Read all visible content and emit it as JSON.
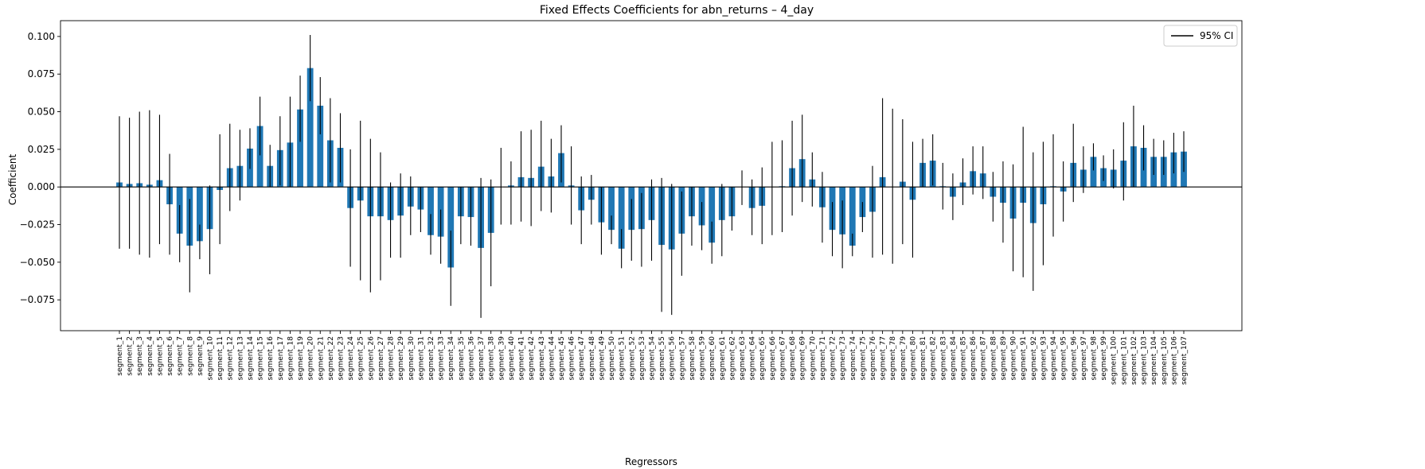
{
  "chart_data": {
    "type": "bar",
    "title": "Fixed Effects Coefficients for abn_returns – 4_day",
    "xlabel": "Regressors",
    "ylabel": "Coefficient",
    "ylim": [
      -0.0955,
      0.1105
    ],
    "yticks": [
      "−0.075",
      "−0.050",
      "−0.025",
      "0.000",
      "0.025",
      "0.050",
      "0.075",
      "0.100"
    ],
    "ytick_values": [
      -0.075,
      -0.05,
      -0.025,
      0,
      0.025,
      0.05,
      0.075,
      0.1
    ],
    "legend": {
      "entries": [
        "95% CI"
      ],
      "placement": "top-right"
    },
    "grid": false,
    "bar_color": "#1f77b4",
    "errorbar_color": "#000000",
    "categories": [
      "segment_1",
      "segment_2",
      "segment_3",
      "segment_4",
      "segment_5",
      "segment_6",
      "segment_7",
      "segment_8",
      "segment_9",
      "segment_10",
      "segment_11",
      "segment_12",
      "segment_13",
      "segment_14",
      "segment_15",
      "segment_16",
      "segment_17",
      "segment_18",
      "segment_19",
      "segment_20",
      "segment_21",
      "segment_22",
      "segment_23",
      "segment_24",
      "segment_25",
      "segment_26",
      "segment_27",
      "segment_28",
      "segment_29",
      "segment_30",
      "segment_31",
      "segment_32",
      "segment_33",
      "segment_34",
      "segment_35",
      "segment_36",
      "segment_37",
      "segment_38",
      "segment_39",
      "segment_40",
      "segment_41",
      "segment_42",
      "segment_43",
      "segment_44",
      "segment_45",
      "segment_46",
      "segment_47",
      "segment_48",
      "segment_49",
      "segment_50",
      "segment_51",
      "segment_52",
      "segment_53",
      "segment_54",
      "segment_55",
      "segment_56",
      "segment_57",
      "segment_58",
      "segment_59",
      "segment_60",
      "segment_61",
      "segment_62",
      "segment_63",
      "segment_64",
      "segment_65",
      "segment_66",
      "segment_67",
      "segment_68",
      "segment_69",
      "segment_70",
      "segment_71",
      "segment_72",
      "segment_73",
      "segment_74",
      "segment_75",
      "segment_76",
      "segment_77",
      "segment_78",
      "segment_79",
      "segment_80",
      "segment_81",
      "segment_82",
      "segment_83",
      "segment_84",
      "segment_85",
      "segment_86",
      "segment_87",
      "segment_88",
      "segment_89",
      "segment_90",
      "segment_91",
      "segment_92",
      "segment_93",
      "segment_94",
      "segment_95",
      "segment_96",
      "segment_97",
      "segment_98",
      "segment_99",
      "segment_100",
      "segment_101",
      "segment_102",
      "segment_103",
      "segment_104",
      "segment_105",
      "segment_106",
      "segment_107"
    ],
    "values": [
      0.003,
      0.002,
      0.0025,
      0.0015,
      0.0045,
      -0.0115,
      -0.031,
      -0.039,
      -0.036,
      -0.028,
      -0.002,
      0.0125,
      0.014,
      0.0255,
      0.0405,
      0.014,
      0.0245,
      0.0295,
      0.0515,
      0.079,
      0.054,
      0.031,
      0.026,
      -0.014,
      -0.009,
      -0.0195,
      -0.0195,
      -0.022,
      -0.019,
      -0.013,
      -0.015,
      -0.032,
      -0.033,
      -0.0535,
      -0.0195,
      -0.02,
      -0.0405,
      -0.0305,
      0.0,
      0.001,
      0.0065,
      0.006,
      0.0135,
      0.007,
      0.0225,
      0.001,
      -0.0155,
      -0.0085,
      -0.0235,
      -0.0285,
      -0.041,
      -0.0285,
      -0.028,
      -0.022,
      -0.0385,
      -0.0415,
      -0.031,
      -0.0195,
      -0.0255,
      -0.037,
      -0.022,
      -0.0195,
      0.0,
      -0.014,
      -0.0125,
      0.0,
      0.0005,
      0.0125,
      0.0185,
      0.005,
      -0.0135,
      -0.0285,
      -0.0315,
      -0.039,
      -0.02,
      -0.0165,
      0.0065,
      0.0,
      0.0035,
      -0.0085,
      0.016,
      0.0175,
      0.0005,
      -0.0065,
      0.003,
      0.0105,
      0.009,
      -0.0065,
      -0.0105,
      -0.021,
      -0.0105,
      -0.024,
      -0.0115,
      0.0005,
      -0.003,
      0.016,
      0.0115,
      0.02,
      0.0125,
      0.0115,
      0.0175,
      0.027,
      0.026,
      0.02,
      0.02,
      0.023,
      0.0235
    ],
    "ci_lower": [
      -0.041,
      -0.041,
      -0.045,
      -0.047,
      -0.038,
      -0.045,
      -0.05,
      -0.07,
      -0.048,
      -0.058,
      -0.038,
      -0.016,
      -0.009,
      0.012,
      0.021,
      0.0,
      0.001,
      0.0,
      0.03,
      0.057,
      0.035,
      0.003,
      0.003,
      -0.053,
      -0.062,
      -0.07,
      -0.062,
      -0.047,
      -0.047,
      -0.032,
      -0.03,
      -0.045,
      -0.051,
      -0.079,
      -0.038,
      -0.039,
      -0.087,
      -0.066,
      -0.025,
      -0.025,
      -0.023,
      -0.026,
      -0.016,
      -0.017,
      0.003,
      -0.025,
      -0.038,
      -0.025,
      -0.045,
      -0.038,
      -0.054,
      -0.049,
      -0.053,
      -0.049,
      -0.083,
      -0.085,
      -0.059,
      -0.039,
      -0.042,
      -0.051,
      -0.046,
      -0.029,
      -0.012,
      -0.032,
      -0.038,
      -0.032,
      -0.03,
      -0.019,
      -0.01,
      -0.013,
      -0.037,
      -0.046,
      -0.054,
      -0.046,
      -0.03,
      -0.047,
      -0.045,
      -0.051,
      -0.038,
      -0.047,
      0.0,
      0.001,
      -0.015,
      -0.022,
      -0.012,
      -0.005,
      -0.008,
      -0.023,
      -0.037,
      -0.056,
      -0.06,
      -0.069,
      -0.052,
      -0.033,
      -0.023,
      -0.01,
      -0.004,
      0.011,
      0.004,
      -0.001,
      -0.009,
      0.0,
      0.011,
      0.008,
      0.008,
      0.009,
      0.01
    ],
    "ci_upper": [
      0.047,
      0.046,
      0.05,
      0.051,
      0.048,
      0.022,
      -0.012,
      -0.008,
      -0.025,
      0.001,
      0.035,
      0.042,
      0.038,
      0.039,
      0.06,
      0.028,
      0.047,
      0.06,
      0.074,
      0.101,
      0.073,
      0.059,
      0.049,
      0.025,
      0.044,
      0.032,
      0.023,
      0.003,
      0.009,
      0.007,
      0.0,
      -0.018,
      -0.015,
      -0.029,
      0.0,
      0.0,
      0.006,
      0.005,
      0.026,
      0.017,
      0.037,
      0.038,
      0.044,
      0.032,
      0.041,
      0.027,
      0.007,
      0.008,
      0.0,
      -0.019,
      -0.028,
      -0.008,
      -0.004,
      0.005,
      0.006,
      0.002,
      -0.003,
      0.0,
      -0.01,
      -0.023,
      0.002,
      0.0,
      0.011,
      0.005,
      0.013,
      0.03,
      0.031,
      0.044,
      0.048,
      0.023,
      0.01,
      -0.01,
      -0.009,
      -0.031,
      -0.01,
      0.014,
      0.059,
      0.052,
      0.045,
      0.03,
      0.032,
      0.035,
      0.016,
      0.009,
      0.019,
      0.027,
      0.027,
      0.01,
      0.017,
      0.015,
      0.04,
      0.023,
      0.03,
      0.035,
      0.017,
      0.042,
      0.027,
      0.029,
      0.021,
      0.025,
      0.043,
      0.054,
      0.041,
      0.032,
      0.031,
      0.036,
      0.037
    ]
  }
}
